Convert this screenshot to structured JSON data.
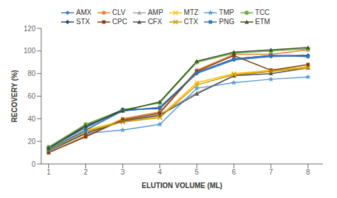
{
  "chart_data": {
    "type": "line",
    "xlabel": "ELUTION VOLUME (ML)",
    "ylabel": "RECOVERY (%)",
    "x": [
      1,
      2,
      3,
      4,
      5,
      6,
      7,
      8
    ],
    "xlim": [
      0.8,
      8.4
    ],
    "xticks": [
      1,
      2,
      3,
      4,
      5,
      6,
      7,
      8
    ],
    "ylim": [
      0,
      120
    ],
    "yticks": [
      0,
      20,
      40,
      60,
      80,
      100,
      120
    ],
    "grid": false,
    "legend": "top",
    "series": [
      {
        "name": "AMX",
        "color": "#4472C4",
        "marker": "diamond",
        "values": [
          14,
          32,
          47,
          50,
          80,
          92,
          95,
          96
        ]
      },
      {
        "name": "CLV",
        "color": "#ED7D31",
        "marker": "square",
        "values": [
          10,
          25,
          40,
          46,
          83,
          97,
          97,
          101
        ]
      },
      {
        "name": "AMP",
        "color": "#A5A5A5",
        "marker": "triangle",
        "values": [
          13,
          28,
          38,
          44,
          63,
          78,
          82,
          86
        ]
      },
      {
        "name": "MTZ",
        "color": "#FFC000",
        "marker": "x",
        "values": [
          13,
          30,
          38,
          42,
          72,
          80,
          83,
          86
        ]
      },
      {
        "name": "TMP",
        "color": "#5B9BD5",
        "marker": "star",
        "values": [
          11,
          27,
          30,
          35,
          67,
          72,
          75,
          77
        ]
      },
      {
        "name": "TCC",
        "color": "#70AD47",
        "marker": "circle",
        "values": [
          15,
          35,
          48,
          54,
          90,
          98,
          100,
          102
        ]
      },
      {
        "name": "STX",
        "color": "#264478",
        "marker": "diamond",
        "values": [
          14,
          33,
          48,
          49,
          81,
          93,
          96,
          96
        ]
      },
      {
        "name": "CPC",
        "color": "#843C0C",
        "marker": "square",
        "values": [
          10,
          24,
          39,
          45,
          82,
          96,
          83,
          88
        ]
      },
      {
        "name": "CFX",
        "color": "#525252",
        "marker": "triangle",
        "values": [
          12,
          27,
          38,
          43,
          62,
          78,
          80,
          85
        ]
      },
      {
        "name": "CTX",
        "color": "#C99A00",
        "marker": "x",
        "values": [
          12,
          29,
          37,
          41,
          70,
          79,
          82,
          85
        ]
      },
      {
        "name": "PNG",
        "color": "#2E75B6",
        "marker": "square",
        "values": [
          13,
          30,
          47,
          50,
          81,
          93,
          96,
          95
        ]
      },
      {
        "name": "ETM",
        "color": "#375623",
        "marker": "triangle",
        "values": [
          14,
          34,
          47,
          55,
          91,
          99,
          101,
          103
        ]
      }
    ]
  }
}
